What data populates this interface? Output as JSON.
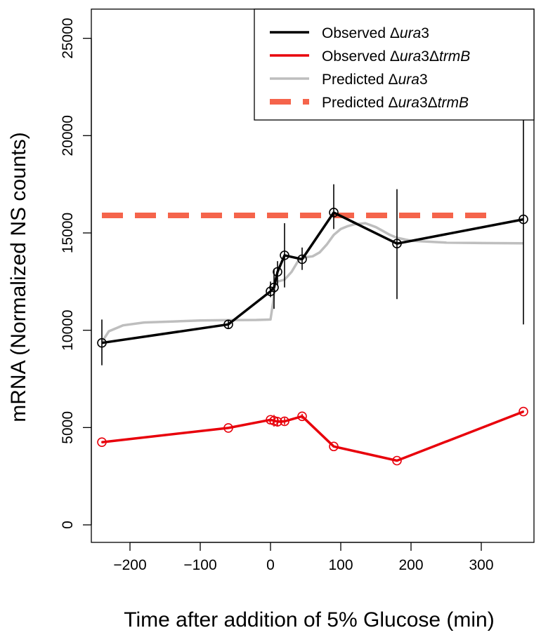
{
  "chart_data": {
    "type": "line",
    "xlabel": "Time after addition of 5% Glucose (min)",
    "ylabel": "mRNA (Normalized NS counts)",
    "xlim": [
      -255,
      375
    ],
    "ylim": [
      -900,
      26500
    ],
    "x_ticks": [
      -200,
      -100,
      0,
      100,
      200,
      300
    ],
    "x_tick_labels": [
      "−200",
      "−100",
      "0",
      "100",
      "200",
      "300"
    ],
    "y_ticks": [
      0,
      5000,
      10000,
      15000,
      20000,
      25000
    ],
    "y_tick_labels": [
      "0",
      "5000",
      "10000",
      "15000",
      "20000",
      "25000"
    ],
    "legend_position": "top-right",
    "legend": [
      {
        "parts": [
          {
            "t": "Observed Δ"
          },
          {
            "t": "ura",
            "i": true
          },
          {
            "t": "3"
          }
        ],
        "color": "#000000",
        "style": "solid"
      },
      {
        "parts": [
          {
            "t": "Observed Δ"
          },
          {
            "t": "ura",
            "i": true
          },
          {
            "t": "3Δ"
          },
          {
            "t": "trmB",
            "i": true
          }
        ],
        "color": "#e8000b",
        "style": "solid"
      },
      {
        "parts": [
          {
            "t": "Predicted Δ"
          },
          {
            "t": "ura",
            "i": true
          },
          {
            "t": "3"
          }
        ],
        "color": "#bebebe",
        "style": "solid"
      },
      {
        "parts": [
          {
            "t": "Predicted Δ"
          },
          {
            "t": "ura",
            "i": true
          },
          {
            "t": "3Δ"
          },
          {
            "t": "trmB",
            "i": true
          }
        ],
        "color": "#f5644b",
        "style": "dashed"
      }
    ],
    "series": [
      {
        "name": "Observed Δura3",
        "color": "#000000",
        "markers": true,
        "x": [
          -240,
          -60,
          0,
          5,
          10,
          20,
          45,
          90,
          180,
          360
        ],
        "y": [
          9350,
          10300,
          12000,
          12200,
          13000,
          13850,
          13650,
          16050,
          14450,
          15700
        ],
        "error_low": [
          8200,
          10100,
          11700,
          11100,
          12300,
          12200,
          13100,
          15200,
          11600,
          10300
        ],
        "error_high": [
          10550,
          10500,
          12500,
          13150,
          13550,
          15500,
          14250,
          17500,
          17250,
          21100
        ]
      },
      {
        "name": "Observed Δura3ΔtrmB",
        "color": "#e8000b",
        "markers": true,
        "x": [
          -240,
          -60,
          0,
          5,
          10,
          20,
          45,
          90,
          180,
          360
        ],
        "y": [
          4250,
          4980,
          5400,
          5350,
          5300,
          5320,
          5580,
          4030,
          3300,
          5820
        ],
        "error_low": [
          4200,
          4930,
          5300,
          5050,
          5050,
          5150,
          5450,
          3980,
          3250,
          5770
        ],
        "error_high": [
          4300,
          5030,
          5500,
          5650,
          5550,
          5500,
          5700,
          4080,
          3350,
          5870
        ]
      },
      {
        "name": "Predicted Δura3",
        "color": "#bebebe",
        "markers": false,
        "x": [
          -240,
          -230,
          -210,
          -180,
          -140,
          -100,
          -60,
          -20,
          0,
          4,
          6,
          10,
          20,
          30,
          40,
          50,
          60,
          70,
          80,
          90,
          100,
          110,
          120,
          135,
          150,
          160,
          170,
          180,
          200,
          250,
          300,
          360
        ],
        "y": [
          9400,
          9950,
          10250,
          10400,
          10450,
          10500,
          10520,
          10530,
          10550,
          11500,
          12300,
          12500,
          12600,
          13000,
          13600,
          13750,
          13800,
          14000,
          14400,
          14900,
          15200,
          15350,
          15450,
          15500,
          15300,
          15100,
          14900,
          14750,
          14600,
          14500,
          14480,
          14470
        ]
      },
      {
        "name": "Predicted Δura3ΔtrmB",
        "color": "#f5644b",
        "dashed": true,
        "markers": false,
        "x": [
          -240,
          320
        ],
        "y": [
          15900,
          15900
        ]
      }
    ]
  }
}
